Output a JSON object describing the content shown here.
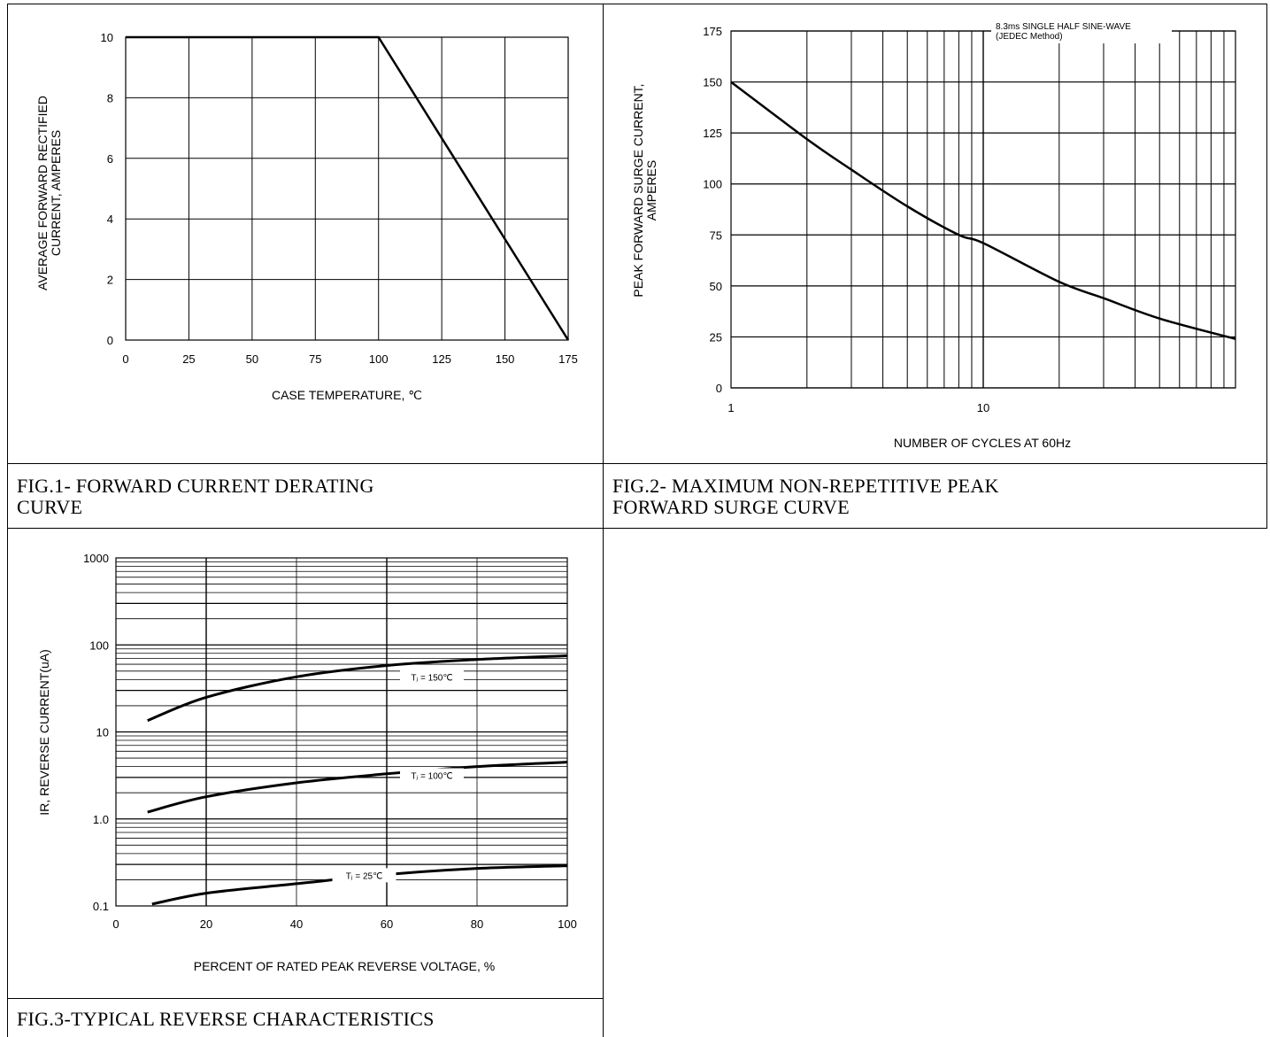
{
  "fig1": {
    "caption_line1": "FIG.1- FORWARD CURRENT DERATING",
    "caption_line2": "CURVE",
    "chart_data": {
      "type": "line",
      "xlabel": "CASE TEMPERATURE, ℃",
      "ylabel_line1": "AVERAGE FORWARD RECTIFIED",
      "ylabel_line2": "CURRENT, AMPERES",
      "xlim": [
        0,
        175
      ],
      "ylim": [
        0,
        10
      ],
      "x_ticks": [
        "0",
        "25",
        "50",
        "75",
        "100",
        "125",
        "150",
        "175"
      ],
      "y_ticks": [
        "0",
        "2",
        "4",
        "6",
        "8",
        "10"
      ],
      "grid": true,
      "series": [
        {
          "x": [
            0,
            100,
            175
          ],
          "y": [
            10,
            10,
            0
          ]
        }
      ]
    }
  },
  "fig2": {
    "caption_line1": "FIG.2- MAXIMUM NON-REPETITIVE PEAK",
    "caption_line2": "FORWARD SURGE CURVE",
    "chart_data": {
      "type": "line",
      "xscale": "log",
      "xlabel": "NUMBER OF CYCLES AT 60Hz",
      "ylabel_line1": "PEAK FORWARD SURGE CURRENT,",
      "ylabel_line2": "AMPERES",
      "xlim": [
        1,
        100
      ],
      "ylim": [
        0,
        175
      ],
      "x_ticks": [
        "1",
        "10"
      ],
      "y_ticks": [
        "0",
        "25",
        "50",
        "75",
        "100",
        "125",
        "150",
        "175"
      ],
      "grid": true,
      "annotation_line1": "8.3ms SINGLE HALF SINE-WAVE",
      "annotation_line2": "(JEDEC Method)",
      "series": [
        {
          "x": [
            1,
            2,
            3,
            5,
            8,
            10,
            20,
            30,
            50,
            100
          ],
          "y": [
            150,
            122,
            107,
            89,
            75,
            71,
            52,
            44,
            34,
            24
          ]
        }
      ]
    }
  },
  "fig3": {
    "caption": "FIG.3-TYPICAL REVERSE CHARACTERISTICS",
    "chart_data": {
      "type": "line",
      "yscale": "log",
      "xlabel": "PERCENT OF RATED PEAK REVERSE VOLTAGE, %",
      "ylabel": "IR, REVERSE CURRENT(uA)",
      "xlim": [
        0,
        100
      ],
      "ylim": [
        0.1,
        1000
      ],
      "x_ticks": [
        "0",
        "20",
        "40",
        "60",
        "80",
        "100"
      ],
      "y_ticks": [
        "0.1",
        "1.0",
        "10",
        "100",
        "1000"
      ],
      "grid": true,
      "series": [
        {
          "label": "Tⱼ = 150℃",
          "x": [
            7,
            20,
            40,
            60,
            80,
            100
          ],
          "y": [
            13.5,
            25,
            43,
            58,
            68,
            75
          ]
        },
        {
          "label": "Tⱼ = 100℃",
          "x": [
            7,
            20,
            40,
            60,
            80,
            100
          ],
          "y": [
            1.2,
            1.8,
            2.6,
            3.3,
            4.0,
            4.5
          ]
        },
        {
          "label": "Tⱼ = 25℃",
          "x": [
            8,
            20,
            40,
            60,
            80,
            100
          ],
          "y": [
            0.105,
            0.14,
            0.18,
            0.23,
            0.27,
            0.29
          ]
        }
      ]
    }
  }
}
